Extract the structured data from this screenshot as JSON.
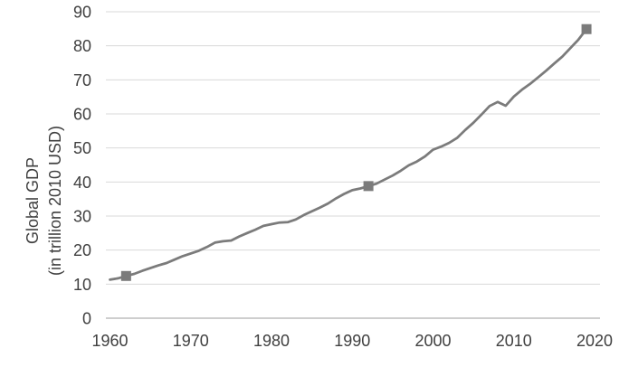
{
  "chart_data": {
    "type": "line",
    "title": "",
    "y_axis": {
      "title_line1": "Global GDP",
      "title_line2": "(in trillion 2010 USD)",
      "ticks": [
        0,
        10,
        20,
        30,
        40,
        50,
        60,
        70,
        80,
        90
      ],
      "range": [
        0,
        90
      ]
    },
    "x_axis": {
      "ticks": [
        1960,
        1970,
        1980,
        1990,
        2000,
        2010,
        2020
      ],
      "range": [
        1960,
        2020
      ]
    },
    "grid": "horizontal",
    "legend": "none",
    "colors": {
      "line": "#7b7b7b",
      "marker": "#7b7b7b",
      "gridline": "#dadada",
      "axis_line": "#bdbdbd",
      "tick_text": "#3f3f3f"
    },
    "series": [
      {
        "name": "Global GDP (in trillion 2010 USD)",
        "x": [
          1960,
          1961,
          1962,
          1963,
          1964,
          1965,
          1966,
          1967,
          1968,
          1969,
          1970,
          1971,
          1972,
          1973,
          1974,
          1975,
          1976,
          1977,
          1978,
          1979,
          1980,
          1981,
          1982,
          1983,
          1984,
          1985,
          1986,
          1987,
          1988,
          1989,
          1990,
          1991,
          1992,
          1993,
          1994,
          1995,
          1996,
          1997,
          1998,
          1999,
          2000,
          2001,
          2002,
          2003,
          2004,
          2005,
          2006,
          2007,
          2008,
          2009,
          2010,
          2011,
          2012,
          2013,
          2014,
          2015,
          2016,
          2017,
          2018,
          2019
        ],
        "values": [
          11.3,
          11.7,
          12.4,
          13.0,
          13.9,
          14.7,
          15.5,
          16.2,
          17.2,
          18.2,
          19.0,
          19.8,
          20.9,
          22.2,
          22.6,
          22.8,
          24.0,
          25.0,
          26.0,
          27.1,
          27.6,
          28.1,
          28.2,
          29.0,
          30.3,
          31.4,
          32.5,
          33.7,
          35.2,
          36.5,
          37.6,
          38.1,
          38.8,
          39.5,
          40.7,
          41.9,
          43.3,
          44.9,
          46.0,
          47.5,
          49.5,
          50.4,
          51.5,
          53.0,
          55.3,
          57.4,
          59.8,
          62.3,
          63.5,
          62.4,
          65.1,
          67.1,
          68.8,
          70.7,
          72.7,
          74.8,
          76.8,
          79.3,
          81.8,
          84.9
        ],
        "marker_x": [
          1962,
          1992,
          2019
        ]
      }
    ]
  }
}
